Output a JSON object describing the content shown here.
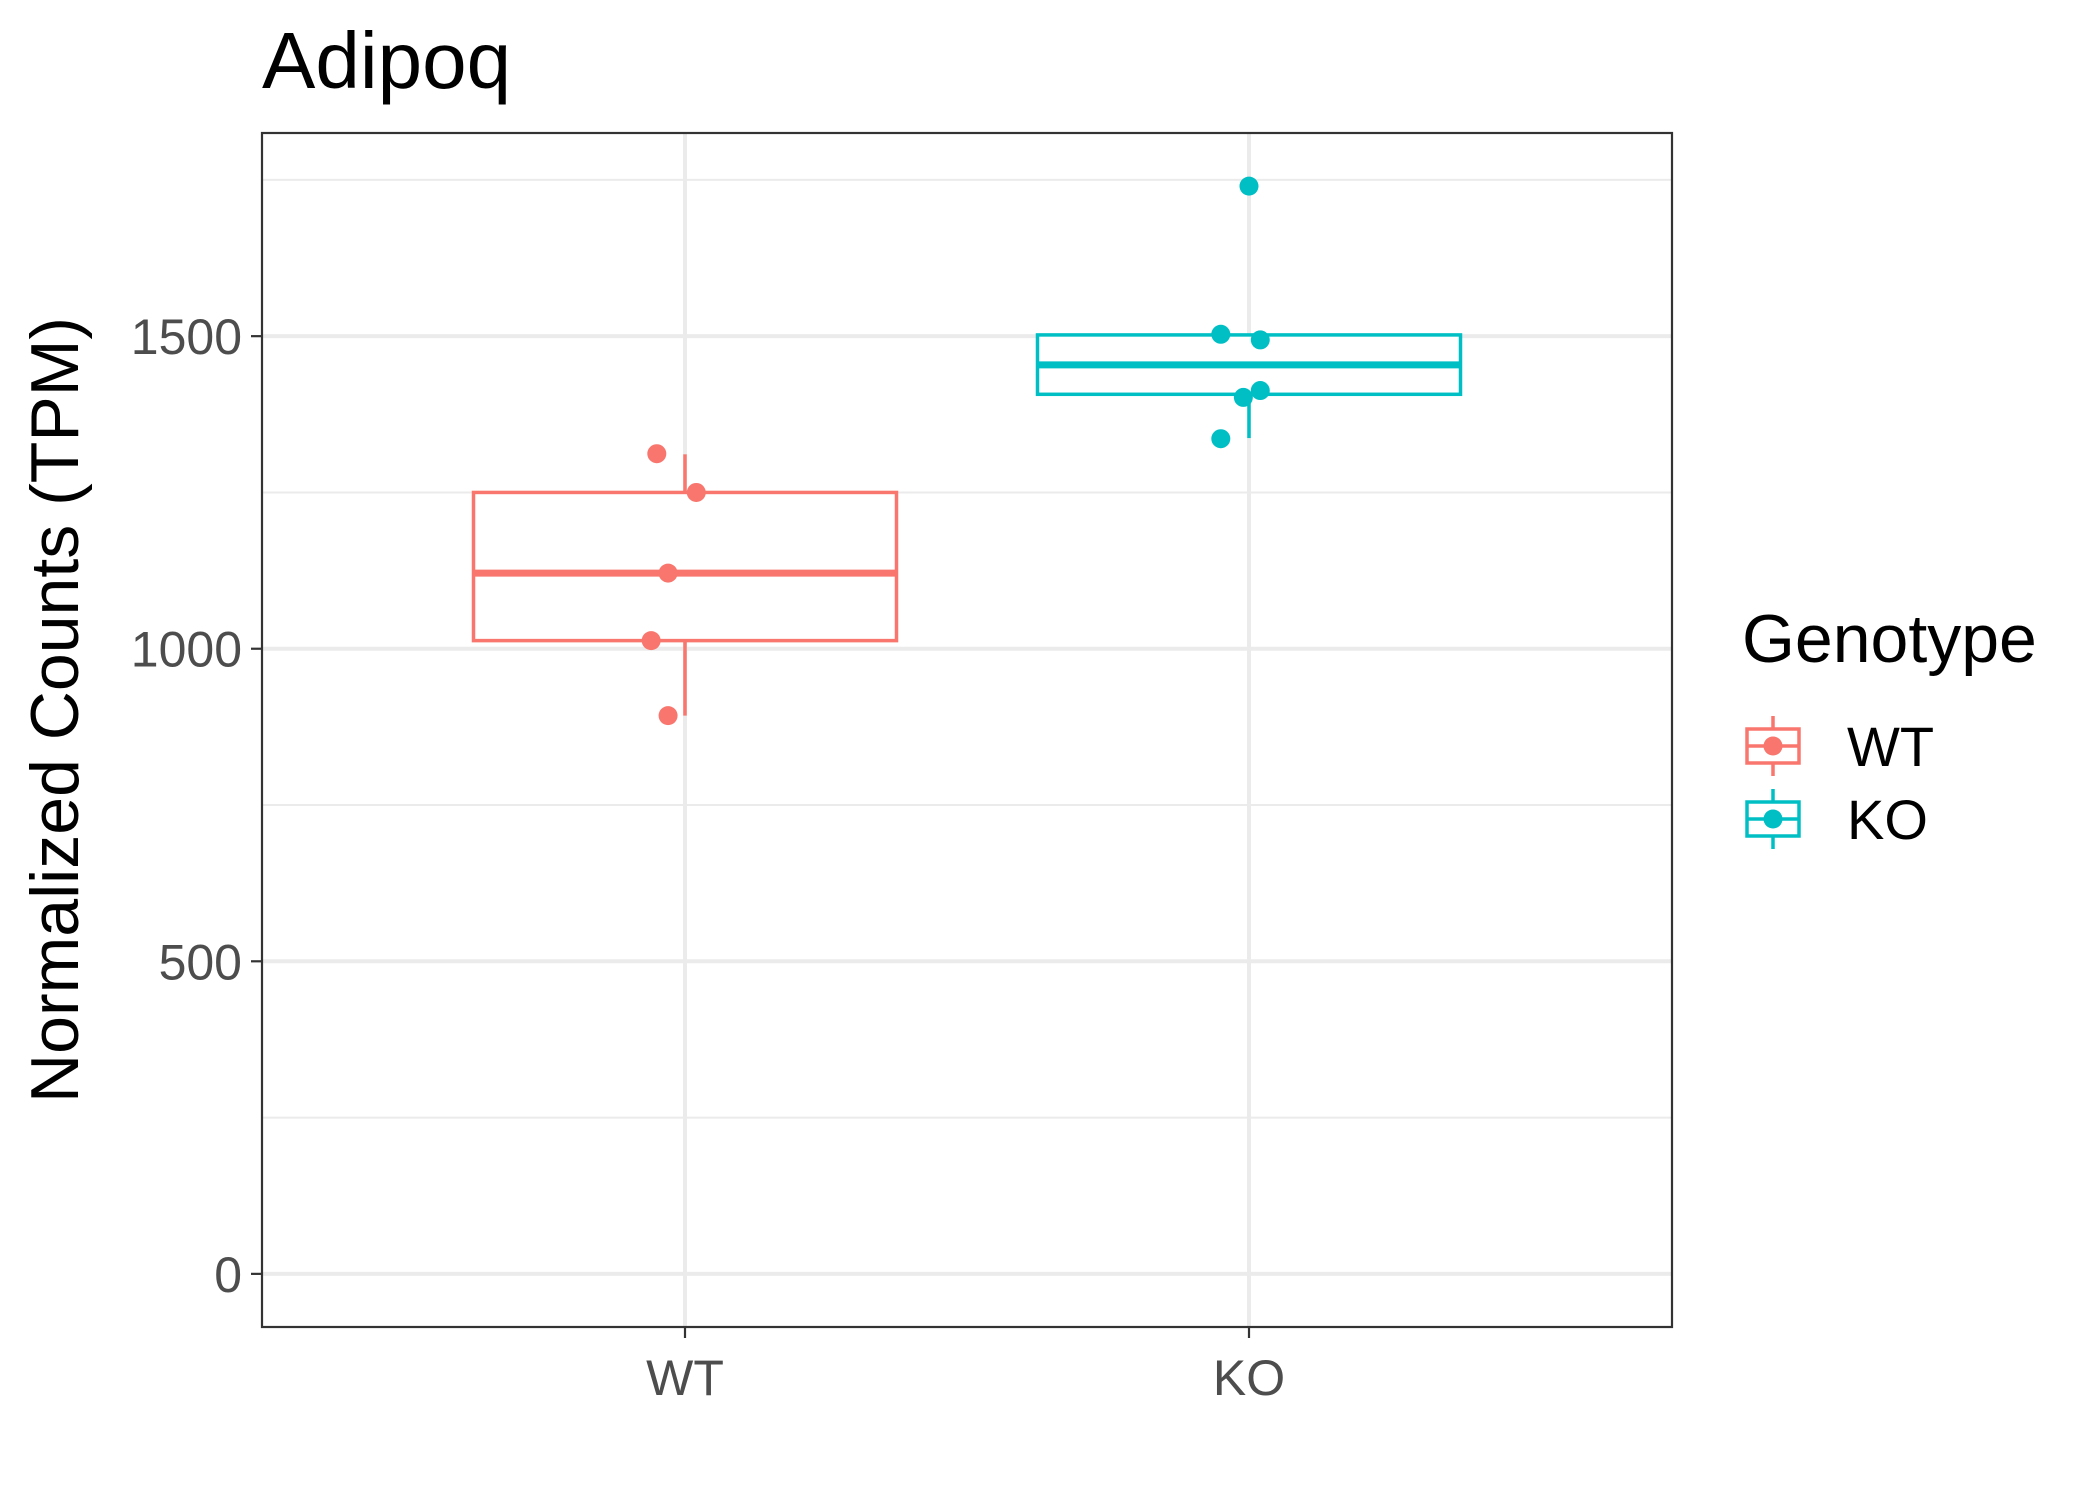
{
  "chart_data": {
    "type": "boxplot",
    "title": "Adipoq",
    "xlabel": "",
    "ylabel": "Normalized Counts (TPM)",
    "categories": [
      "WT",
      "KO"
    ],
    "ylim": [
      -85,
      1825
    ],
    "yticks": [
      0,
      500,
      1000,
      1500
    ],
    "ytick_labels": [
      "0",
      "500",
      "1000",
      "1500"
    ],
    "grid": true,
    "legend": {
      "title": "Genotype",
      "position": "right",
      "entries": [
        "WT",
        "KO"
      ]
    },
    "colors": {
      "WT": "#F8766D",
      "KO": "#00BFC4"
    },
    "series": [
      {
        "name": "WT",
        "box": {
          "min": 893,
          "q1": 1013,
          "median": 1121,
          "q3": 1250,
          "max": 1311
        },
        "points": [
          {
            "y": 1312,
            "jitter": -0.05
          },
          {
            "y": 1250,
            "jitter": 0.02
          },
          {
            "y": 1121,
            "jitter": -0.03
          },
          {
            "y": 1013,
            "jitter": -0.06
          },
          {
            "y": 893,
            "jitter": -0.03
          }
        ]
      },
      {
        "name": "KO",
        "box": {
          "min": 1337,
          "q1": 1407,
          "median": 1454,
          "q3": 1502,
          "max": 1502
        },
        "points": [
          {
            "y": 1740,
            "jitter": 0.0
          },
          {
            "y": 1503,
            "jitter": -0.05
          },
          {
            "y": 1494,
            "jitter": 0.02
          },
          {
            "y": 1413,
            "jitter": 0.02
          },
          {
            "y": 1402,
            "jitter": -0.01
          },
          {
            "y": 1336,
            "jitter": -0.05
          }
        ]
      }
    ]
  }
}
